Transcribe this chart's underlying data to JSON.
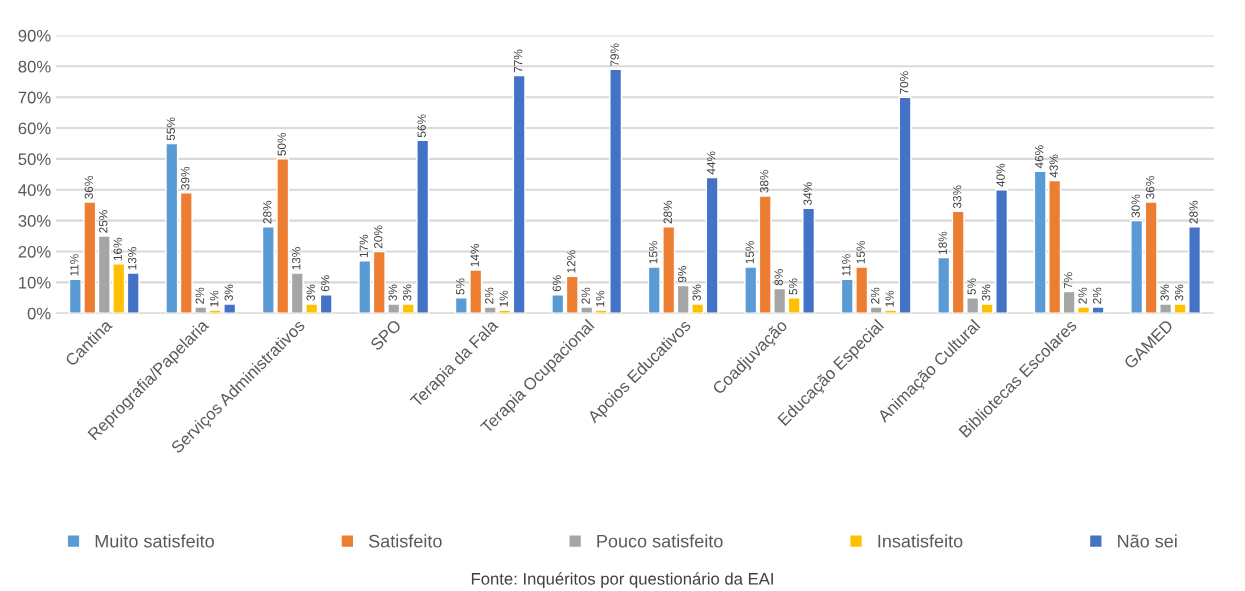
{
  "chart_data": {
    "type": "bar",
    "categories": [
      "Cantina",
      "Reprografia/Papelaria",
      "Serviços Administrativos",
      "SPO",
      "Terapia da Fala",
      "Terapia Ocupacional",
      "Apoios Educativos",
      "Coadjuvação",
      "Educação Especial",
      "Animação Cultural",
      "Bibliotecas Escolares",
      "GAMED"
    ],
    "series": [
      {
        "name": "Muito satisfeito",
        "color": "#5b9bd5",
        "values": [
          11,
          55,
          28,
          17,
          5,
          6,
          15,
          15,
          11,
          18,
          46,
          30
        ],
        "value_labels": [
          "11%",
          "55%",
          "28%",
          "17%",
          "5%",
          "6%",
          "15%",
          "15%",
          "11%",
          "18%",
          "46%",
          "30%"
        ]
      },
      {
        "name": "Satisfeito",
        "color": "#ed7d31",
        "values": [
          36,
          39,
          50,
          20,
          14,
          12,
          28,
          38,
          15,
          33,
          43,
          36
        ],
        "value_labels": [
          "36%",
          "39%",
          "50%",
          "20%",
          "14%",
          "12%",
          "28%",
          "38%",
          "15%",
          "33%",
          "43%",
          "36%"
        ]
      },
      {
        "name": "Pouco satisfeito",
        "color": "#a5a5a5",
        "values": [
          25,
          2,
          13,
          3,
          2,
          2,
          9,
          8,
          2,
          5,
          7,
          3
        ],
        "value_labels": [
          "25%",
          "2%",
          "13%",
          "3%",
          "2%",
          "2%",
          "9%",
          "8%",
          "2%",
          "5%",
          "7%",
          "3%"
        ]
      },
      {
        "name": "Insatisfeito",
        "color": "#ffc000",
        "values": [
          16,
          1,
          3,
          3,
          1,
          1,
          3,
          5,
          1,
          3,
          2,
          3
        ],
        "value_labels": [
          "16%",
          "1%",
          "3%",
          "3%",
          "1%",
          "1%",
          "3%",
          "5%",
          "1%",
          "3%",
          "2%",
          "3%"
        ]
      },
      {
        "name": "Não sei",
        "color": "#4472c4",
        "values": [
          13,
          3,
          6,
          56,
          77,
          79,
          44,
          34,
          70,
          40,
          2,
          28
        ],
        "value_labels": [
          "13%",
          "3%",
          "6%",
          "56%",
          "77%",
          "79%",
          "44%",
          "34%",
          "70%",
          "40%",
          "2%",
          "28%"
        ]
      }
    ],
    "ylim": [
      0,
      90
    ],
    "yticks": [
      {
        "value": 0,
        "label": "0%"
      },
      {
        "value": 10,
        "label": "10%"
      },
      {
        "value": 20,
        "label": "20%"
      },
      {
        "value": 30,
        "label": "30%"
      },
      {
        "value": 40,
        "label": "40%"
      },
      {
        "value": 50,
        "label": "50%"
      },
      {
        "value": 60,
        "label": "60%"
      },
      {
        "value": 70,
        "label": "70%"
      },
      {
        "value": 80,
        "label": "80%"
      },
      {
        "value": 90,
        "label": "90%"
      }
    ],
    "grid": "y",
    "legend": "bottom",
    "annotations": [
      "Fonte: Inquéritos por questionário da EAI"
    ]
  }
}
